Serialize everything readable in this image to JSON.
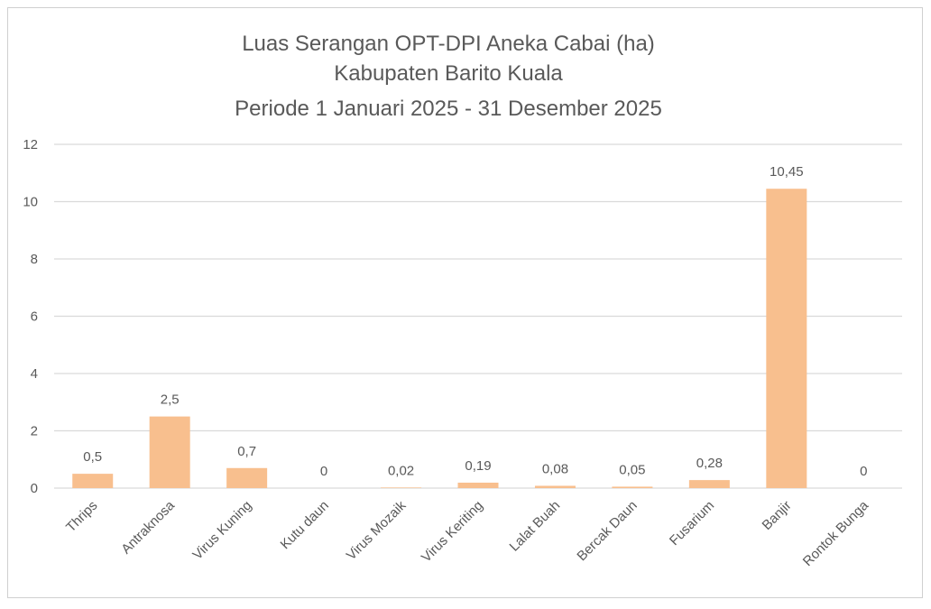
{
  "chart_data": {
    "type": "bar",
    "title": [
      "Luas Serangan OPT-DPI Aneka Cabai (ha)",
      "Kabupaten Barito Kuala",
      "Periode 1 Januari 2025 - 31 Desember 2025"
    ],
    "categories": [
      "Thrips",
      "Antraknosa",
      "Virus Kuning",
      "Kutu daun",
      "Virus Mozaik",
      "Virus Keriting",
      "Lalat Buah",
      "Bercak Daun",
      "Fusarium",
      "Banjir",
      "Rontok Bunga"
    ],
    "values": [
      0.5,
      2.5,
      0.7,
      0,
      0.02,
      0.19,
      0.08,
      0.05,
      0.28,
      10.45,
      0
    ],
    "data_labels": [
      "0,5",
      "2,5",
      "0,7",
      "0",
      "0,02",
      "0,19",
      "0,08",
      "0,05",
      "0,28",
      "10,45",
      "0"
    ],
    "yticks": [
      0,
      2,
      4,
      6,
      8,
      10,
      12
    ],
    "ylim": [
      0,
      12
    ],
    "xlabel": "",
    "ylabel": "",
    "grid": true,
    "legend": "none",
    "bar_color": "#f8bf8e",
    "grid_color": "#d9d9d9",
    "text_color": "#595959"
  }
}
